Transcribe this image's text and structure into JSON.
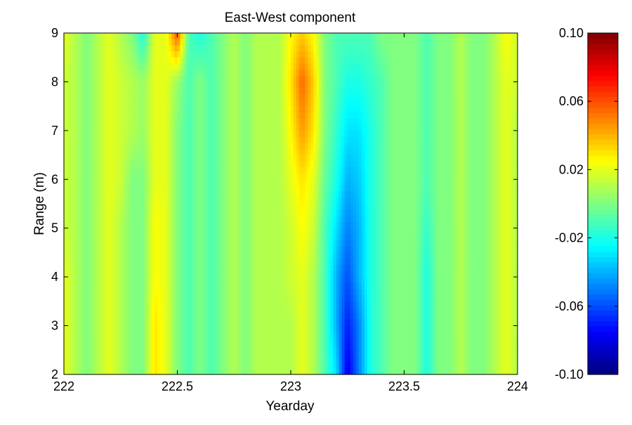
{
  "chart_data": {
    "type": "heatmap",
    "title": "East-West component",
    "xlabel": "Yearday",
    "ylabel": "Range (m)",
    "xlim": [
      222,
      224
    ],
    "ylim": [
      2,
      9
    ],
    "x_ticks": [
      "222",
      "222.5",
      "223",
      "223.5",
      "224"
    ],
    "y_ticks": [
      "2",
      "3",
      "4",
      "5",
      "6",
      "7",
      "8",
      "9"
    ],
    "colorbar": {
      "colormap": "jet",
      "range": [
        -0.1,
        0.1
      ],
      "ticks": [
        "0.10",
        "0.06",
        "0.02",
        "-0.02",
        "-0.06",
        "-0.10"
      ]
    },
    "x": [
      222.0,
      222.05,
      222.1,
      222.15,
      222.2,
      222.25,
      222.3,
      222.35,
      222.4,
      222.45,
      222.5,
      222.55,
      222.6,
      222.65,
      222.7,
      222.75,
      222.8,
      222.85,
      222.9,
      222.95,
      223.0,
      223.05,
      223.1,
      223.15,
      223.2,
      223.25,
      223.3,
      223.35,
      223.4,
      223.45,
      223.5,
      223.55,
      223.6,
      223.65,
      223.7,
      223.75,
      223.8,
      223.85,
      223.9,
      223.95,
      224.0
    ],
    "y": [
      2,
      3,
      4,
      5,
      6,
      7,
      8,
      9
    ],
    "z": [
      [
        0.02,
        0.01,
        0.0,
        0.01,
        0.02,
        0.01,
        0.0,
        0.0,
        0.03,
        0.02,
        0.0,
        -0.01,
        0.0,
        -0.01,
        0.0,
        0.01,
        0.0,
        0.01,
        0.01,
        0.01,
        0.01,
        0.02,
        0.01,
        -0.01,
        -0.03,
        -0.08,
        -0.05,
        -0.02,
        -0.01,
        0.0,
        0.0,
        0.0,
        -0.02,
        0.0,
        0.0,
        0.01,
        0.0,
        0.0,
        0.01,
        0.02,
        0.01
      ],
      [
        0.02,
        0.01,
        0.0,
        0.01,
        0.02,
        0.01,
        0.0,
        0.0,
        0.03,
        0.02,
        0.0,
        -0.01,
        0.0,
        -0.01,
        0.0,
        0.01,
        0.0,
        0.01,
        0.01,
        0.01,
        0.01,
        0.02,
        0.01,
        -0.01,
        -0.04,
        -0.07,
        -0.05,
        -0.02,
        -0.01,
        0.0,
        0.0,
        0.0,
        -0.02,
        0.0,
        0.0,
        0.01,
        0.0,
        0.0,
        0.01,
        0.02,
        0.01
      ],
      [
        0.02,
        0.01,
        0.0,
        0.01,
        0.02,
        0.01,
        0.0,
        0.0,
        0.025,
        0.02,
        0.0,
        -0.01,
        0.0,
        -0.01,
        0.0,
        0.01,
        0.0,
        0.01,
        0.01,
        0.01,
        0.015,
        0.02,
        0.01,
        -0.01,
        -0.04,
        -0.06,
        -0.04,
        -0.02,
        -0.01,
        0.0,
        0.0,
        0.0,
        -0.02,
        0.0,
        0.0,
        0.01,
        0.0,
        0.0,
        0.01,
        0.02,
        0.01
      ],
      [
        0.015,
        0.01,
        0.0,
        0.01,
        0.02,
        0.01,
        0.0,
        0.0,
        0.025,
        0.02,
        0.0,
        -0.01,
        0.0,
        -0.01,
        0.0,
        0.01,
        0.0,
        0.01,
        0.01,
        0.01,
        0.015,
        0.025,
        0.015,
        -0.01,
        -0.03,
        -0.05,
        -0.04,
        -0.02,
        -0.01,
        0.0,
        0.0,
        0.0,
        -0.015,
        0.0,
        0.0,
        0.01,
        0.0,
        0.0,
        0.01,
        0.02,
        0.01
      ],
      [
        0.015,
        0.01,
        0.0,
        0.01,
        0.02,
        0.015,
        0.0,
        0.0,
        0.02,
        0.02,
        0.0,
        -0.01,
        0.0,
        -0.01,
        0.0,
        0.01,
        0.0,
        0.01,
        0.01,
        0.01,
        0.02,
        0.03,
        0.02,
        -0.005,
        -0.02,
        -0.04,
        -0.035,
        -0.02,
        -0.01,
        0.0,
        0.0,
        0.0,
        -0.01,
        0.0,
        0.0,
        0.01,
        0.0,
        0.0,
        0.01,
        0.02,
        0.01
      ],
      [
        0.015,
        0.01,
        0.0,
        0.01,
        0.02,
        0.015,
        0.01,
        0.005,
        0.02,
        0.02,
        0.0,
        -0.01,
        0.0,
        -0.01,
        0.0,
        0.01,
        0.0,
        0.01,
        0.01,
        0.01,
        0.025,
        0.045,
        0.03,
        0.0,
        -0.015,
        -0.03,
        -0.03,
        -0.02,
        -0.01,
        0.0,
        0.0,
        0.0,
        -0.01,
        0.0,
        0.0,
        0.01,
        0.0,
        0.0,
        0.01,
        0.02,
        0.01
      ],
      [
        0.015,
        0.01,
        0.0,
        0.01,
        0.02,
        0.015,
        0.01,
        0.005,
        0.02,
        0.02,
        0.005,
        -0.01,
        0.0,
        -0.01,
        0.0,
        0.01,
        0.0,
        0.01,
        0.01,
        0.01,
        0.03,
        0.055,
        0.035,
        0.0,
        -0.01,
        -0.02,
        -0.02,
        -0.015,
        -0.01,
        0.0,
        0.0,
        0.0,
        -0.01,
        0.0,
        0.0,
        0.01,
        0.0,
        0.0,
        0.01,
        0.02,
        0.015
      ],
      [
        0.02,
        0.01,
        0.0,
        0.01,
        0.02,
        0.01,
        0.0,
        -0.02,
        0.02,
        0.02,
        0.06,
        -0.01,
        -0.02,
        -0.01,
        0.0,
        0.01,
        0.0,
        0.01,
        0.01,
        0.01,
        0.025,
        0.035,
        0.025,
        0.0,
        -0.01,
        -0.01,
        -0.01,
        -0.01,
        0.0,
        0.0,
        0.0,
        0.0,
        -0.01,
        0.0,
        0.0,
        0.01,
        0.0,
        0.0,
        0.01,
        0.025,
        0.015
      ]
    ]
  }
}
